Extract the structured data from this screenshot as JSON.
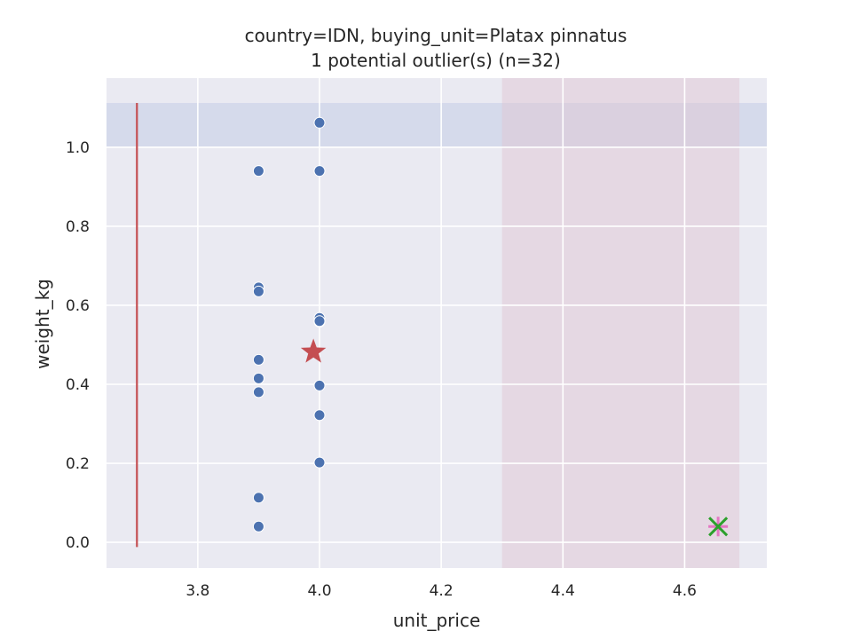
{
  "chart_data": {
    "type": "scatter",
    "title": "country=IDN, buying_unit=Platax pinnatus",
    "subtitle": "1 potential outlier(s) (n=32)",
    "xlabel": "unit_price",
    "ylabel": "weight_kg",
    "xlim": [
      3.65,
      4.735
    ],
    "ylim": [
      -0.065,
      1.175
    ],
    "grid": true,
    "x_ticks": [
      3.8,
      4.0,
      4.2,
      4.4,
      4.6
    ],
    "x_tick_labels": [
      "3.8",
      "4.0",
      "4.2",
      "4.4",
      "4.6"
    ],
    "y_ticks": [
      0.0,
      0.2,
      0.4,
      0.6,
      0.8,
      1.0
    ],
    "y_tick_labels": [
      "0.0",
      "0.2",
      "0.4",
      "0.6",
      "0.8",
      "1.0"
    ],
    "colors": {
      "plot_bg": "#eaeaf2",
      "grid": "#ffffff",
      "points": "#4c72b0",
      "mean_star": "#c44e52",
      "range_line": "#c44e52",
      "outlier_x": "#2ca02c",
      "outlier_plus": "#e377c2",
      "y_band": "#b0bde0",
      "x_band": "#e0c4d0"
    },
    "series": [
      {
        "x": [
          3.9,
          3.9,
          3.9,
          3.9,
          3.9,
          3.9,
          3.9,
          3.9,
          3.9,
          4.0,
          4.0,
          4.0,
          4.0,
          4.0,
          4.0,
          4.0,
          4.0
        ],
        "y": [
          0.94,
          0.645,
          0.635,
          0.462,
          0.415,
          0.38,
          0.113,
          0.04,
          0.94,
          1.062,
          0.94,
          0.568,
          0.558,
          0.397,
          0.322,
          0.202,
          0.56
        ]
      }
    ],
    "mean_marker": {
      "x": 3.99,
      "y": 0.482
    },
    "outlier": {
      "x": 4.655,
      "y": 0.04
    },
    "range_line": {
      "x": 3.7,
      "y_from": -0.012,
      "y_to": 1.112
    },
    "y_band": [
      1.0,
      1.112
    ],
    "x_band": [
      4.3,
      4.69
    ]
  }
}
